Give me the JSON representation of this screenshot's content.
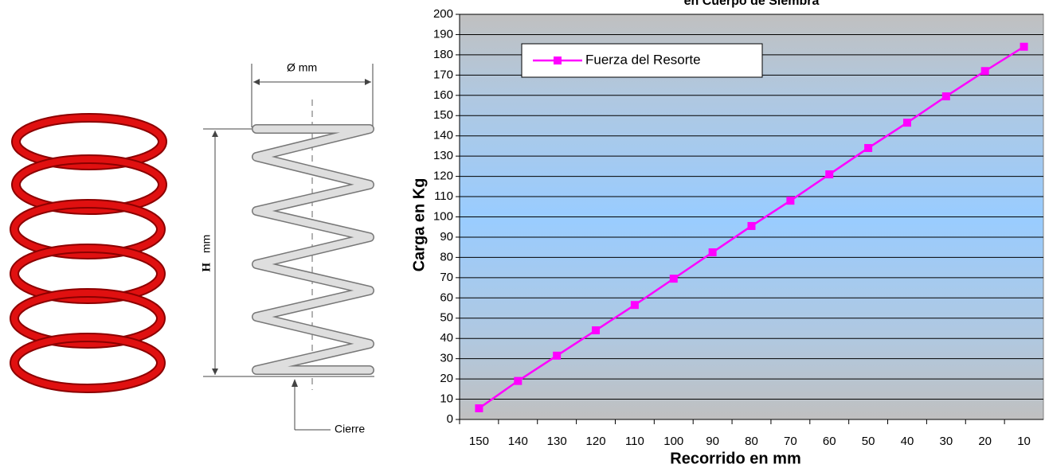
{
  "figure": {
    "diameter_label": "Ø   mm",
    "height_label_bold": "H",
    "height_label_unit": "mm",
    "closure_label": "Cierre"
  },
  "chart_data": {
    "type": "line",
    "title": "en Cuerpo de Siembra",
    "x_label": "Recorrido en mm",
    "y_label": "Carga en Kg",
    "categories": [
      "150",
      "140",
      "130",
      "120",
      "110",
      "100",
      "90",
      "80",
      "70",
      "60",
      "50",
      "40",
      "30",
      "20",
      "10"
    ],
    "series": [
      {
        "name": "Fuerza del Resorte",
        "color": "#ff00ff",
        "values": [
          5.5,
          19,
          31.5,
          44,
          56.5,
          69.5,
          82.5,
          95.5,
          108,
          121,
          134,
          146.5,
          159.5,
          172,
          184
        ]
      }
    ],
    "ylim": [
      0,
      200
    ],
    "yticks": [
      0,
      10,
      20,
      30,
      40,
      50,
      60,
      70,
      80,
      90,
      100,
      110,
      120,
      130,
      140,
      150,
      160,
      170,
      180,
      190,
      200
    ],
    "grid": true,
    "legend": "top-left"
  }
}
